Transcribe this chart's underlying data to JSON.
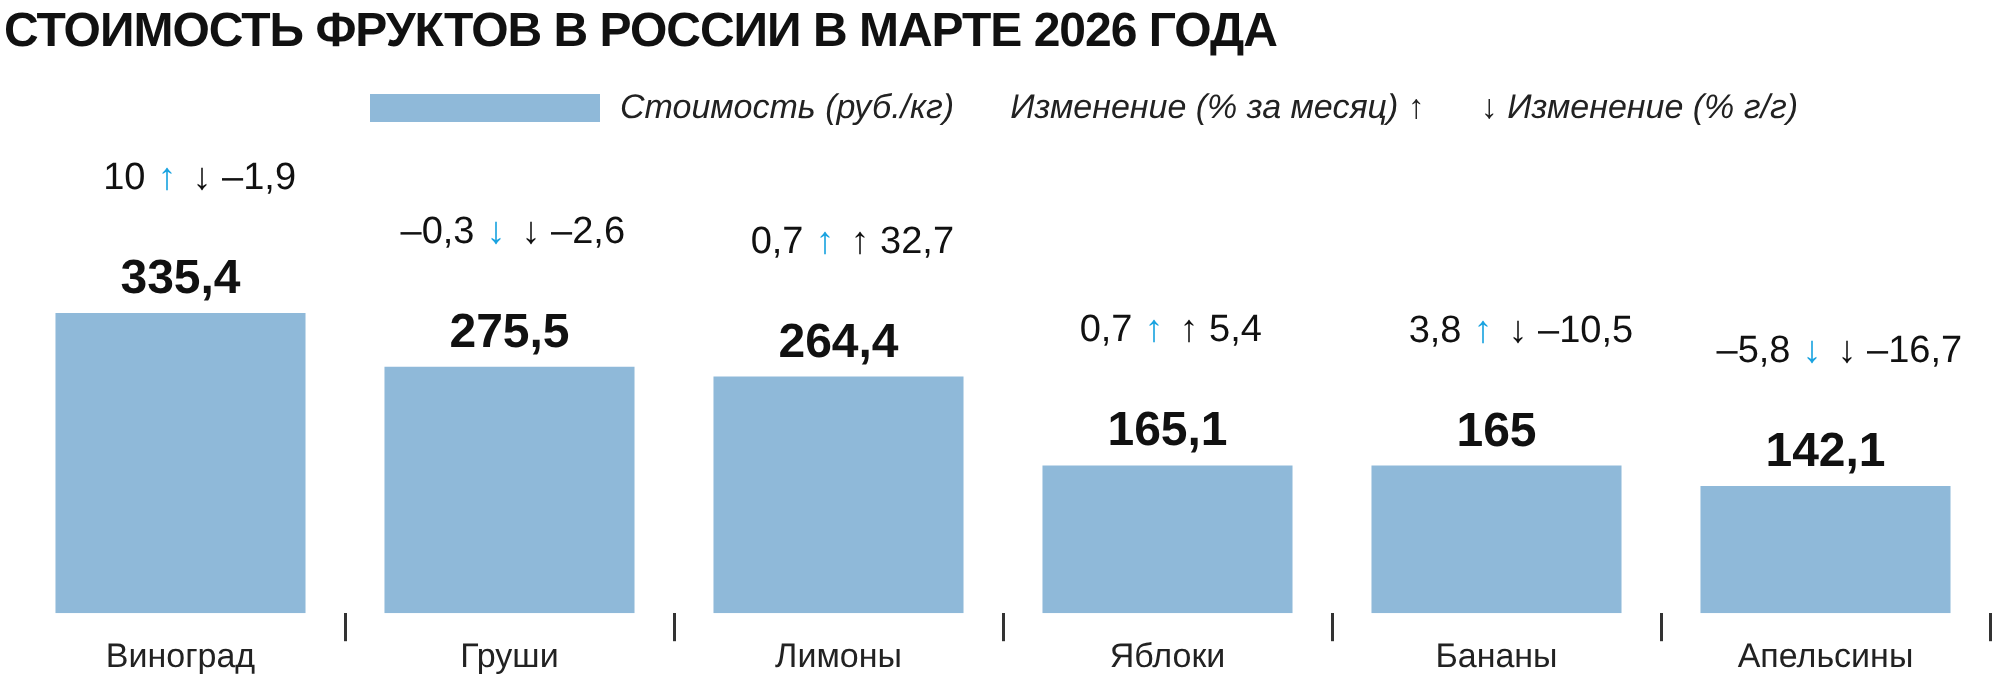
{
  "chart_data": {
    "type": "bar",
    "title": "СТОИМОСТЬ ФРУКТОВ В РОССИИ В МАРТЕ 2026 ГОДА",
    "categories": [
      "Виноград",
      "Груши",
      "Лимоны",
      "Яблоки",
      "Бананы",
      "Апельсины"
    ],
    "series": [
      {
        "name": "Стоимость (руб./кг)",
        "color": "#8fb9d9",
        "values": [
          335.4,
          275.5,
          264.4,
          165.1,
          165,
          142.1
        ],
        "value_labels": [
          "335,4",
          "275,5",
          "264,4",
          "165,1",
          "165",
          "142,1"
        ]
      }
    ],
    "legend": "top",
    "annotations": [
      "Изменение (% за месяц) ↑",
      "↓ Изменение (% г/г)",
      "10",
      "↑",
      "↓ –1,9",
      "–0,3",
      "↓",
      "↓ –2,6",
      "0,7",
      "↑",
      "↑ 32,7",
      "0,7",
      "↑",
      "↑ 5,4",
      "3,8",
      "↑",
      "↓ –10,5",
      "–5,8",
      "↓",
      "↓ –16,7"
    ]
  }
}
